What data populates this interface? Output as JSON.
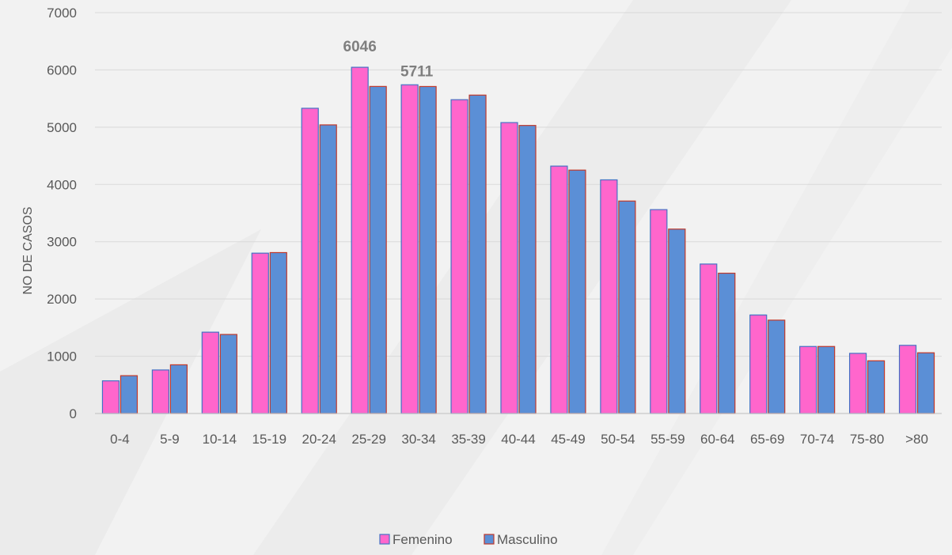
{
  "chart_data": {
    "type": "bar",
    "title": "",
    "xlabel": "",
    "ylabel": "NO DE CASOS",
    "ylim": [
      0,
      7000
    ],
    "yticks": [
      0,
      1000,
      2000,
      3000,
      4000,
      5000,
      6000,
      7000
    ],
    "grid": true,
    "legend_position": "bottom",
    "categories": [
      "0-4",
      "5-9",
      "10-14",
      "15-19",
      "20-24",
      "25-29",
      "30-34",
      "35-39",
      "40-44",
      "45-49",
      "50-54",
      "55-59",
      "60-64",
      "65-69",
      "70-74",
      "75-80",
      ">80"
    ],
    "series": [
      {
        "name": "Femenino",
        "color": "#ff66cc",
        "border": "#4472c4",
        "values": [
          570,
          760,
          1420,
          2800,
          5330,
          6046,
          5740,
          5480,
          5080,
          4320,
          4080,
          3560,
          2610,
          1720,
          1170,
          1050,
          1190
        ]
      },
      {
        "name": "Masculino",
        "color": "#5b8fd6",
        "border": "#c0392b",
        "values": [
          660,
          850,
          1380,
          2810,
          5040,
          5711,
          5710,
          5560,
          5030,
          4250,
          3710,
          3220,
          2450,
          1630,
          1170,
          920,
          1060
        ]
      }
    ],
    "data_labels": [
      {
        "series": 0,
        "category": "25-29",
        "text": "6046"
      },
      {
        "series": 1,
        "category": "25-29",
        "text": "5711"
      }
    ]
  }
}
